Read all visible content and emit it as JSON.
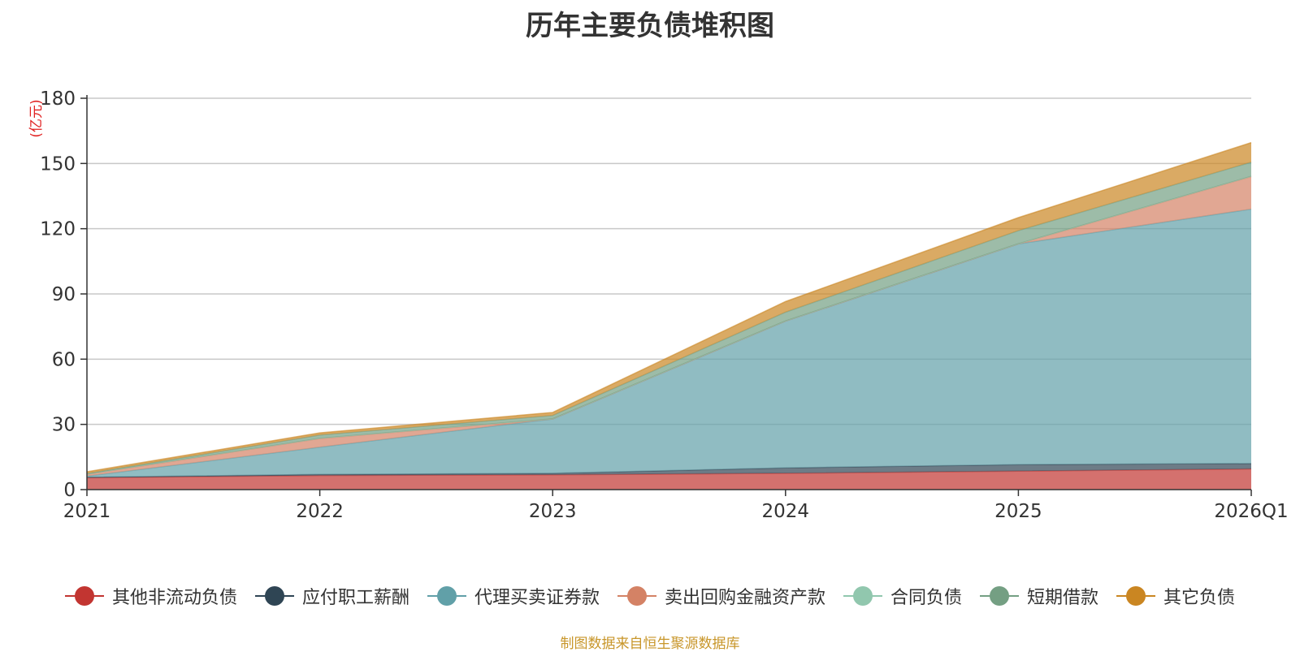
{
  "chart_data": {
    "type": "area",
    "stacked": true,
    "title": "历年主要负债堆积图",
    "ylabel": "(亿元)",
    "xlabel": "",
    "categories": [
      "2021",
      "2022",
      "2023",
      "2024",
      "2025",
      "2026Q1"
    ],
    "ylim": [
      0,
      180
    ],
    "yticks": [
      0,
      30,
      60,
      90,
      120,
      150,
      180
    ],
    "grid": true,
    "legend_position": "bottom",
    "series": [
      {
        "name": "其他非流动负债",
        "color": "#c23531",
        "values": [
          5.5,
          6.5,
          6.8,
          7.5,
          8.5,
          9.5
        ]
      },
      {
        "name": "应付职工薪酬",
        "color": "#2f4554",
        "values": [
          0.2,
          0.5,
          0.7,
          2.5,
          3.0,
          2.5
        ]
      },
      {
        "name": "代理买卖证券款",
        "color": "#61a0a8",
        "values": [
          0.5,
          12.5,
          25.0,
          67.5,
          101.5,
          117.0
        ]
      },
      {
        "name": "卖出回购金融资产款",
        "color": "#d48265",
        "values": [
          0.8,
          4.0,
          0.0,
          0.0,
          0.0,
          15.0
        ]
      },
      {
        "name": "合同负债",
        "color": "#91c7ae",
        "values": [
          0.1,
          0.1,
          0.1,
          0.1,
          0.1,
          0.1
        ]
      },
      {
        "name": "短期借款",
        "color": "#749f83",
        "values": [
          0.3,
          1.5,
          1.5,
          4.0,
          6.0,
          6.5
        ]
      },
      {
        "name": "其它负债",
        "color": "#ca8622",
        "values": [
          0.8,
          1.0,
          1.4,
          4.9,
          6.0,
          9.0
        ]
      }
    ]
  },
  "source_note": "制图数据来自恒生聚源数据库"
}
